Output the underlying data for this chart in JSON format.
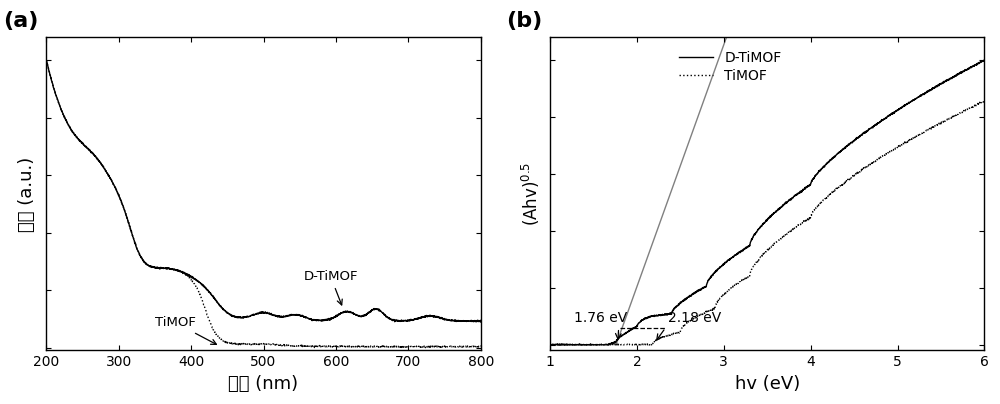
{
  "panel_a": {
    "xlabel": "波长 (nm)",
    "ylabel": "强度 (a.u.)",
    "label_a": "(a)",
    "xlim": [
      200,
      800
    ],
    "xticks": [
      200,
      300,
      400,
      500,
      600,
      700,
      800
    ],
    "label_DTiMOF": "D-TiMOF",
    "label_TiMOF": "TiMOF"
  },
  "panel_b": {
    "xlabel": "hv (eV)",
    "ylabel": "(Ahv)$^{0.5}$",
    "label_b": "(b)",
    "xlim": [
      1,
      6
    ],
    "xticks": [
      1,
      2,
      3,
      4,
      5,
      6
    ],
    "label_DTiMOF": "D-TiMOF",
    "label_TiMOF": "TiMOF",
    "annotation_1": "1.76 eV",
    "annotation_2": "2.18 eV",
    "Eg1": 1.76,
    "Eg2": 2.18
  }
}
